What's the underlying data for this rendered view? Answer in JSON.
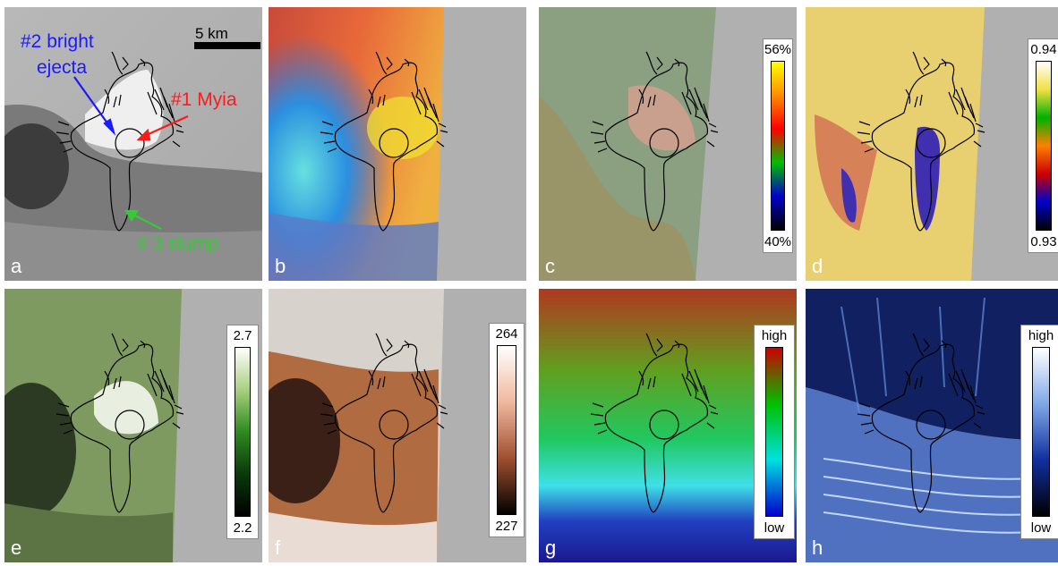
{
  "figure": {
    "panels": [
      {
        "id": "a",
        "label": "a"
      },
      {
        "id": "b",
        "label": "b"
      },
      {
        "id": "c",
        "label": "c"
      },
      {
        "id": "d",
        "label": "d"
      },
      {
        "id": "e",
        "label": "e"
      },
      {
        "id": "f",
        "label": "f"
      },
      {
        "id": "g",
        "label": "g"
      },
      {
        "id": "h",
        "label": "h"
      }
    ],
    "scale_bar": "5 km",
    "annotations": {
      "bright_ejecta_line1": "#2 bright",
      "bright_ejecta_line2": "ejecta",
      "myia": "#1 Myia",
      "slump": "# 3 slump"
    },
    "colorbars": {
      "c": {
        "top": "56%",
        "bottom": "40%"
      },
      "d": {
        "top": "0.94",
        "bottom": "0.93"
      },
      "e": {
        "top": "2.7",
        "bottom": "2.2"
      },
      "f": {
        "top": "264",
        "bottom": "227"
      },
      "g": {
        "top": "high",
        "bottom": "low"
      },
      "h": {
        "top": "high",
        "bottom": "low"
      }
    },
    "colors": {
      "annotation_blue": "#1a1aff",
      "annotation_red": "#ff1a1a",
      "annotation_green": "#33cc33"
    }
  }
}
